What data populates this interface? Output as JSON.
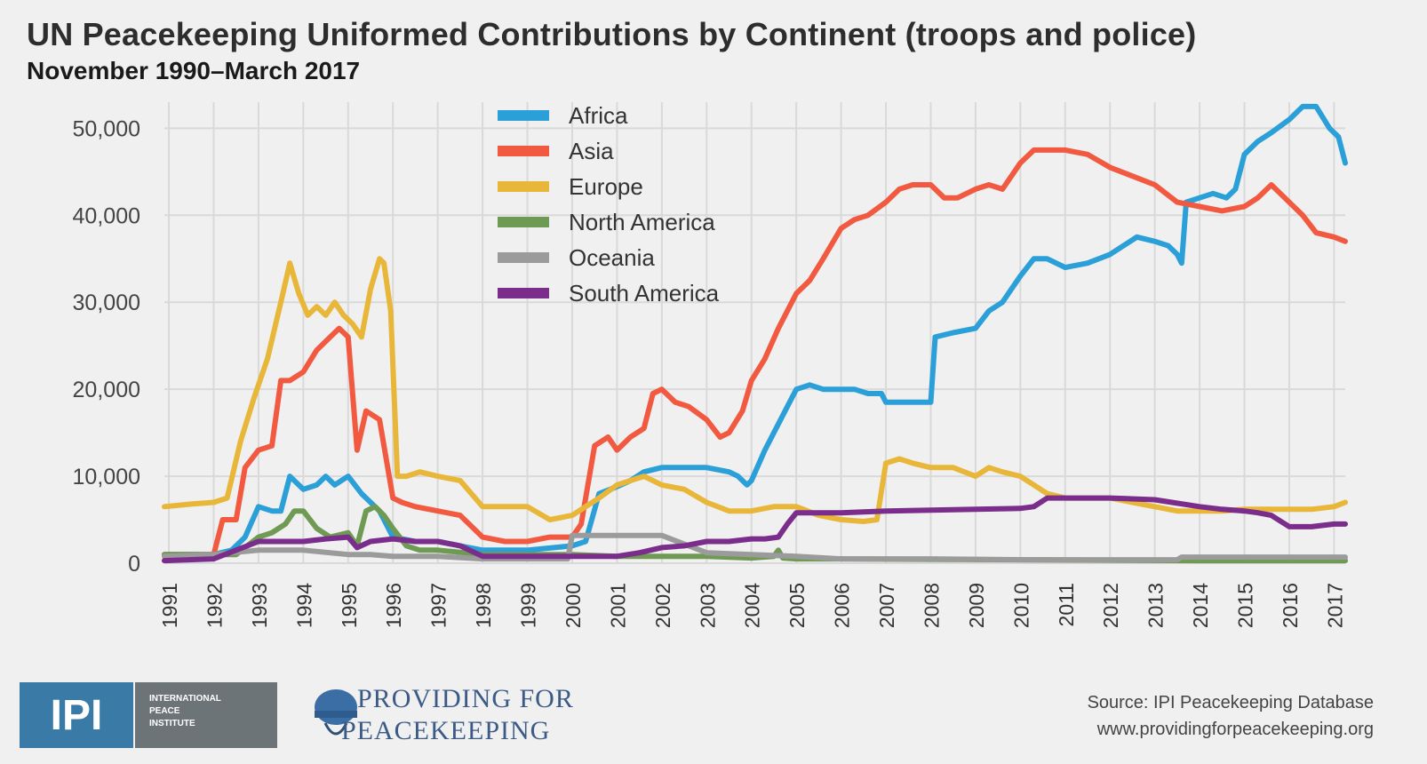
{
  "header": {
    "title": "UN Peacekeeping Uniformed Contributions by Continent (troops and police)",
    "subtitle": "November 1990–March 2017"
  },
  "footer": {
    "ipi_logo_text": "IPI",
    "ipi_org_lines": [
      "INTERNATIONAL",
      "PEACE",
      "INSTITUTE"
    ],
    "ppk_line1": "PROVIDING FOR",
    "ppk_line2": "PEACEKEEPING",
    "source_line1": "Source: IPI Peacekeeping Database",
    "source_line2": "www.providingforpeacekeeping.org"
  },
  "colors": {
    "background": "#f0f0f0",
    "grid": "#d9d9d9"
  },
  "chart_data": {
    "type": "line",
    "title": "UN Peacekeeping Uniformed Contributions by Continent (troops and police)",
    "subtitle": "November 1990–March 2017",
    "xlabel": "",
    "ylabel": "",
    "xlim": [
      1990.9,
      2017.25
    ],
    "ylim": [
      0,
      53000
    ],
    "y_ticks": [
      0,
      10000,
      20000,
      30000,
      40000,
      50000
    ],
    "y_tick_labels": [
      "0",
      "10,000",
      "20,000",
      "30,000",
      "40,000",
      "50,000"
    ],
    "x_ticks": [
      1991,
      1992,
      1993,
      1994,
      1995,
      1996,
      1997,
      1998,
      1999,
      2000,
      2001,
      2002,
      2003,
      2004,
      2005,
      2006,
      2007,
      2008,
      2009,
      2010,
      2011,
      2012,
      2013,
      2014,
      2015,
      2016,
      2017
    ],
    "grid": true,
    "legend_position": "top-center",
    "series": [
      {
        "name": "Africa",
        "color": "#2b9fd8",
        "x": [
          1990.9,
          1992.0,
          1992.4,
          1992.7,
          1993.0,
          1993.3,
          1993.5,
          1993.7,
          1994.0,
          1994.3,
          1994.5,
          1994.7,
          1995.0,
          1995.3,
          1995.7,
          1996.0,
          1996.5,
          1997.0,
          1997.5,
          1998.0,
          1999.0,
          2000.0,
          2000.3,
          2000.6,
          2001.0,
          2001.3,
          2001.6,
          2002.0,
          2002.5,
          2003.0,
          2003.5,
          2003.7,
          2003.9,
          2004.0,
          2004.3,
          2004.6,
          2005.0,
          2005.3,
          2005.6,
          2006.0,
          2006.3,
          2006.6,
          2006.9,
          2007.0,
          2007.5,
          2008.0,
          2008.1,
          2008.5,
          2009.0,
          2009.3,
          2009.6,
          2010.0,
          2010.3,
          2010.6,
          2011.0,
          2011.5,
          2012.0,
          2012.3,
          2012.6,
          2013.0,
          2013.3,
          2013.5,
          2013.6,
          2013.7,
          2014.0,
          2014.3,
          2014.6,
          2014.8,
          2015.0,
          2015.3,
          2015.6,
          2016.0,
          2016.3,
          2016.6,
          2016.9,
          2017.1,
          2017.25
        ],
        "y": [
          1000,
          1000,
          1500,
          3000,
          6500,
          6000,
          6000,
          10000,
          8500,
          9000,
          10000,
          9000,
          10000,
          8000,
          6000,
          3000,
          2500,
          2500,
          2000,
          1500,
          1500,
          2000,
          2500,
          8000,
          8800,
          9500,
          10500,
          11000,
          11000,
          11000,
          10500,
          10000,
          9000,
          9500,
          13000,
          16000,
          20000,
          20500,
          20000,
          20000,
          20000,
          19500,
          19500,
          18500,
          18500,
          18500,
          26000,
          26500,
          27000,
          29000,
          30000,
          33000,
          35000,
          35000,
          34000,
          34500,
          35500,
          36500,
          37500,
          37000,
          36500,
          35500,
          34500,
          41500,
          42000,
          42500,
          42000,
          43000,
          47000,
          48500,
          49500,
          51000,
          52500,
          52500,
          50000,
          49000,
          46000
        ]
      },
      {
        "name": "Asia",
        "color": "#f15a40",
        "x": [
          1990.9,
          1992.0,
          1992.2,
          1992.5,
          1992.7,
          1993.0,
          1993.3,
          1993.5,
          1993.7,
          1994.0,
          1994.3,
          1994.6,
          1994.8,
          1995.0,
          1995.2,
          1995.4,
          1995.7,
          1996.0,
          1996.2,
          1996.5,
          1997.0,
          1997.5,
          1998.0,
          1998.5,
          1999.0,
          1999.5,
          2000.0,
          2000.2,
          2000.5,
          2000.8,
          2001.0,
          2001.3,
          2001.6,
          2001.8,
          2002.0,
          2002.3,
          2002.6,
          2003.0,
          2003.3,
          2003.5,
          2003.8,
          2004.0,
          2004.3,
          2004.6,
          2005.0,
          2005.3,
          2005.6,
          2006.0,
          2006.3,
          2006.6,
          2007.0,
          2007.3,
          2007.6,
          2008.0,
          2008.3,
          2008.6,
          2009.0,
          2009.3,
          2009.6,
          2010.0,
          2010.3,
          2010.6,
          2011.0,
          2011.5,
          2012.0,
          2012.5,
          2013.0,
          2013.5,
          2014.0,
          2014.5,
          2015.0,
          2015.3,
          2015.6,
          2016.0,
          2016.3,
          2016.6,
          2017.0,
          2017.25
        ],
        "y": [
          1000,
          1000,
          5000,
          5000,
          11000,
          13000,
          13500,
          21000,
          21000,
          22000,
          24500,
          26000,
          27000,
          26000,
          13000,
          17500,
          16500,
          7500,
          7000,
          6500,
          6000,
          5500,
          3000,
          2500,
          2500,
          3000,
          3000,
          4500,
          13500,
          14500,
          13000,
          14500,
          15500,
          19500,
          20000,
          18500,
          18000,
          16500,
          14500,
          15000,
          17500,
          21000,
          23500,
          27000,
          31000,
          32500,
          35000,
          38500,
          39500,
          40000,
          41500,
          43000,
          43500,
          43500,
          42000,
          42000,
          43000,
          43500,
          43000,
          46000,
          47500,
          47500,
          47500,
          47000,
          45500,
          44500,
          43500,
          41500,
          41000,
          40500,
          41000,
          42000,
          43500,
          41500,
          40000,
          38000,
          37500,
          37000
        ]
      },
      {
        "name": "Europe",
        "color": "#e8b739",
        "x": [
          1990.9,
          1991.5,
          1992.0,
          1992.3,
          1992.6,
          1992.9,
          1993.2,
          1993.5,
          1993.7,
          1993.9,
          1994.1,
          1994.3,
          1994.5,
          1994.7,
          1994.9,
          1995.1,
          1995.3,
          1995.5,
          1995.7,
          1995.8,
          1995.95,
          1996.1,
          1996.3,
          1996.6,
          1997.0,
          1997.5,
          1998.0,
          1998.5,
          1999.0,
          1999.5,
          2000.0,
          2000.3,
          2000.6,
          2001.0,
          2001.3,
          2001.6,
          2002.0,
          2002.5,
          2003.0,
          2003.5,
          2004.0,
          2004.5,
          2005.0,
          2005.5,
          2006.0,
          2006.5,
          2006.8,
          2007.0,
          2007.3,
          2007.6,
          2008.0,
          2008.5,
          2009.0,
          2009.3,
          2009.6,
          2010.0,
          2010.3,
          2010.6,
          2011.0,
          2011.5,
          2012.0,
          2012.5,
          2013.0,
          2013.5,
          2014.0,
          2014.5,
          2015.0,
          2015.5,
          2016.0,
          2016.5,
          2017.0,
          2017.25
        ],
        "y": [
          6500,
          6800,
          7000,
          7500,
          14000,
          19000,
          23500,
          30000,
          34500,
          31000,
          28500,
          29500,
          28500,
          30000,
          28500,
          27500,
          26000,
          31500,
          35000,
          34500,
          29000,
          10000,
          10000,
          10500,
          10000,
          9500,
          6500,
          6500,
          6500,
          5000,
          5500,
          6500,
          7500,
          9000,
          9500,
          10000,
          9000,
          8500,
          7000,
          6000,
          6000,
          6500,
          6500,
          5500,
          5000,
          4800,
          5000,
          11500,
          12000,
          11500,
          11000,
          11000,
          10000,
          11000,
          10500,
          10000,
          9000,
          8000,
          7500,
          7500,
          7500,
          7000,
          6500,
          6000,
          6000,
          6000,
          6200,
          6200,
          6200,
          6200,
          6500,
          7000
        ]
      },
      {
        "name": "North America",
        "color": "#6f9a54",
        "x": [
          1990.9,
          1992.0,
          1992.5,
          1993.0,
          1993.3,
          1993.6,
          1993.8,
          1994.0,
          1994.3,
          1994.6,
          1995.0,
          1995.2,
          1995.4,
          1995.6,
          1995.8,
          1996.0,
          1996.3,
          1996.6,
          1997.0,
          1998.0,
          2000.0,
          2001.0,
          2002.0,
          2003.0,
          2004.0,
          2004.5,
          2004.6,
          2004.7,
          2005.0,
          2006.0,
          2010.0,
          2014.0,
          2017.25
        ],
        "y": [
          1000,
          1000,
          1000,
          3000,
          3500,
          4500,
          6000,
          6000,
          4000,
          3000,
          3500,
          2000,
          6000,
          6500,
          5500,
          4000,
          2000,
          1500,
          1500,
          1000,
          1000,
          800,
          800,
          800,
          600,
          800,
          1500,
          600,
          500,
          500,
          400,
          300,
          300
        ]
      },
      {
        "name": "Oceania",
        "color": "#9b9b9b",
        "x": [
          1990.9,
          1992.0,
          1993.0,
          1994.0,
          1995.0,
          1995.5,
          1996.0,
          1997.0,
          1998.0,
          1999.0,
          1999.9,
          2000.0,
          2002.0,
          2003.0,
          2004.0,
          2005.0,
          2006.0,
          2008.0,
          2010.0,
          2012.0,
          2013.5,
          2013.6,
          2017.25
        ],
        "y": [
          800,
          1000,
          1500,
          1500,
          1000,
          1000,
          800,
          800,
          500,
          500,
          500,
          3200,
          3200,
          1200,
          1000,
          800,
          500,
          500,
          400,
          400,
          400,
          700,
          700
        ]
      },
      {
        "name": "South America",
        "color": "#7b2d8b",
        "x": [
          1990.9,
          1992.0,
          1992.5,
          1993.0,
          1993.5,
          1994.0,
          1994.5,
          1995.0,
          1995.2,
          1995.5,
          1996.0,
          1996.5,
          1997.0,
          1997.5,
          1998.0,
          1999.0,
          2000.0,
          2001.0,
          2001.5,
          2002.0,
          2002.5,
          2003.0,
          2003.5,
          2004.0,
          2004.3,
          2004.6,
          2004.8,
          2005.0,
          2005.5,
          2006.0,
          2007.0,
          2008.0,
          2009.0,
          2010.0,
          2010.3,
          2010.6,
          2011.0,
          2012.0,
          2013.0,
          2014.0,
          2014.5,
          2015.0,
          2015.3,
          2015.6,
          2016.0,
          2016.5,
          2017.0,
          2017.25
        ],
        "y": [
          300,
          500,
          1500,
          2500,
          2500,
          2500,
          2800,
          3000,
          1800,
          2500,
          2800,
          2500,
          2500,
          2000,
          800,
          800,
          800,
          800,
          1200,
          1800,
          2000,
          2500,
          2500,
          2800,
          2800,
          3000,
          4500,
          5800,
          5800,
          5800,
          6000,
          6100,
          6200,
          6300,
          6500,
          7500,
          7500,
          7500,
          7300,
          6500,
          6200,
          6000,
          5800,
          5500,
          4200,
          4200,
          4500,
          4500
        ]
      }
    ]
  }
}
